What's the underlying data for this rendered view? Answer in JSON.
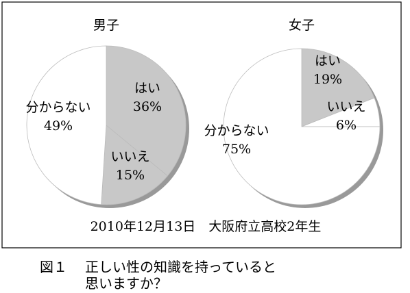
{
  "chart_data": [
    {
      "type": "pie",
      "title": "男子",
      "categories": [
        "はい",
        "いいえ",
        "分からない"
      ],
      "values": [
        36,
        15,
        49
      ],
      "value_labels": [
        "36%",
        "15%",
        "49%"
      ],
      "colors": [
        "#c8c8c8",
        "#c8c8c8",
        "#ffffff"
      ]
    },
    {
      "type": "pie",
      "title": "女子",
      "categories": [
        "はい",
        "いいえ",
        "分からない"
      ],
      "values": [
        19,
        6,
        75
      ],
      "value_labels": [
        "19%",
        "6%",
        "75%"
      ],
      "colors": [
        "#c8c8c8",
        "#ffffff",
        "#ffffff"
      ]
    }
  ],
  "note": "2010年12月13日　大阪府立高校2年生",
  "caption": {
    "number": "図１",
    "text": "正しい性の知識を持っていると思いますか？"
  }
}
